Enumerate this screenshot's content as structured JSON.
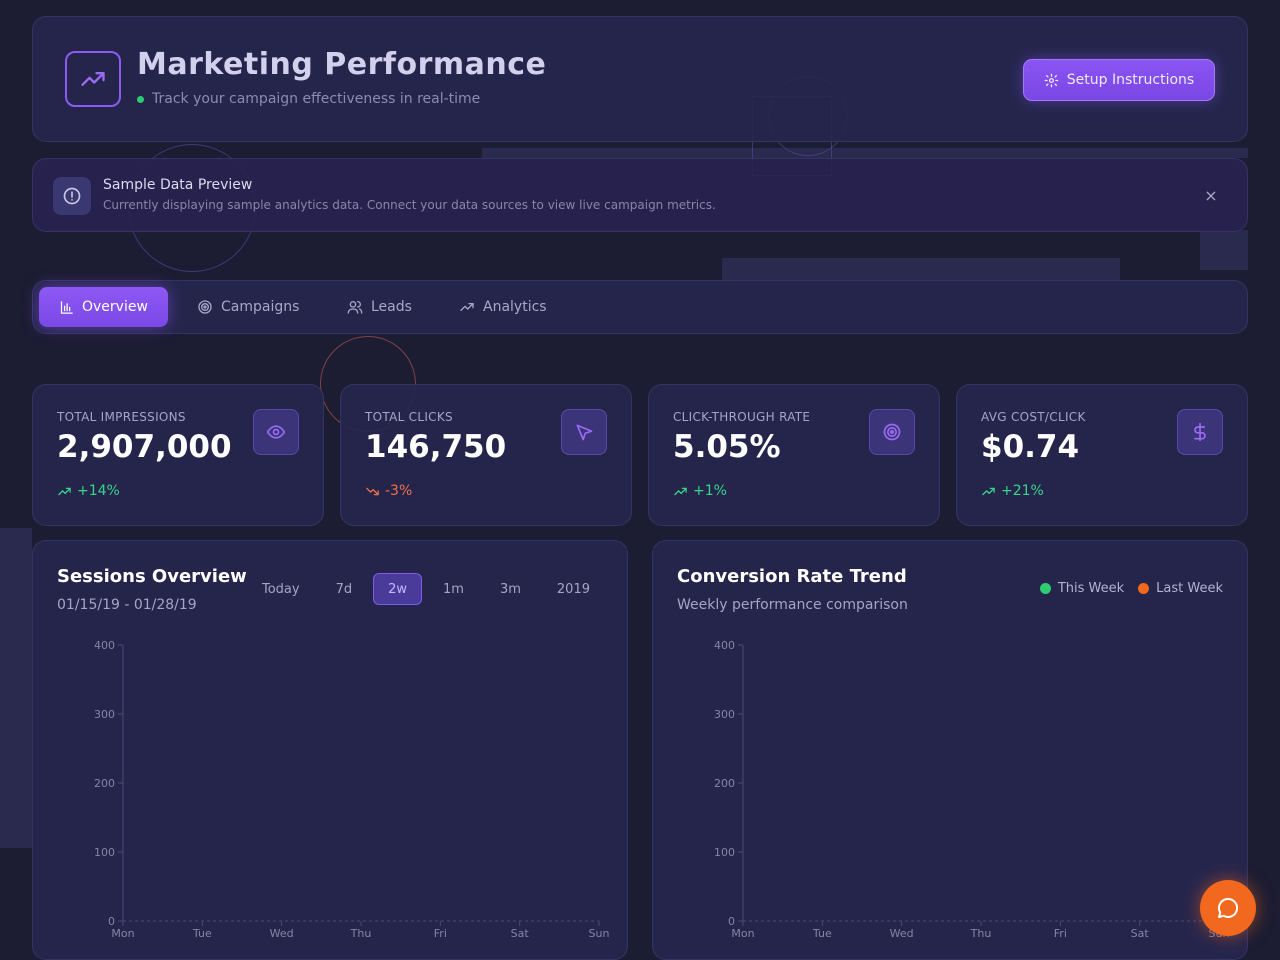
{
  "header": {
    "title": "Marketing Performance",
    "subtitle": "Track your campaign effectiveness in real-time",
    "setup_label": "Setup Instructions"
  },
  "banner": {
    "title": "Sample Data Preview",
    "text": "Currently displaying sample analytics data. Connect your data sources to view live campaign metrics.",
    "close_label": "×"
  },
  "tabs": [
    {
      "label": "Overview",
      "icon": "bar-chart-icon",
      "active": true
    },
    {
      "label": "Campaigns",
      "icon": "target-icon"
    },
    {
      "label": "Leads",
      "icon": "users-icon"
    },
    {
      "label": "Analytics",
      "icon": "trend-icon"
    }
  ],
  "stats": [
    {
      "label": "TOTAL IMPRESSIONS",
      "value": "2,907,000",
      "trend": "+14%",
      "direction": "up",
      "icon": "eye-icon"
    },
    {
      "label": "TOTAL CLICKS",
      "value": "146,750",
      "trend": "-3%",
      "direction": "down",
      "icon": "cursor-icon"
    },
    {
      "label": "CLICK-THROUGH RATE",
      "value": "5.05%",
      "trend": "+1%",
      "direction": "up",
      "icon": "target-icon"
    },
    {
      "label": "AVG COST/CLICK",
      "value": "$0.74",
      "trend": "+21%",
      "direction": "up",
      "icon": "dollar-icon"
    }
  ],
  "sessions": {
    "title": "Sessions Overview",
    "date_range": "01/15/19 - 01/28/19",
    "ranges": [
      "Today",
      "7d",
      "2w",
      "1m",
      "3m",
      "2019"
    ],
    "active_range": "2w"
  },
  "conversion": {
    "title": "Conversion Rate Trend",
    "subtitle": "Weekly performance comparison",
    "legend": [
      {
        "label": "This Week",
        "color": "#2ecc71"
      },
      {
        "label": "Last Week",
        "color": "#f2681e"
      }
    ]
  },
  "chart_data": [
    {
      "type": "line",
      "title": "Sessions Overview",
      "categories": [
        "Mon",
        "Tue",
        "Wed",
        "Thu",
        "Fri",
        "Sat",
        "Sun"
      ],
      "yticks": [
        "0",
        "100",
        "200",
        "300",
        "400"
      ],
      "ylim": [
        0,
        400
      ],
      "series": []
    },
    {
      "type": "line",
      "title": "Conversion Rate Trend",
      "categories": [
        "Mon",
        "Tue",
        "Wed",
        "Thu",
        "Fri",
        "Sat",
        "Sun"
      ],
      "yticks": [
        "0",
        "100",
        "200",
        "300",
        "400"
      ],
      "ylim": [
        0,
        400
      ],
      "series": []
    }
  ],
  "colors": {
    "accent": "#8a55f2",
    "trend_up": "#36d68a",
    "trend_down": "#f0704a",
    "chat": "#f2681e"
  }
}
